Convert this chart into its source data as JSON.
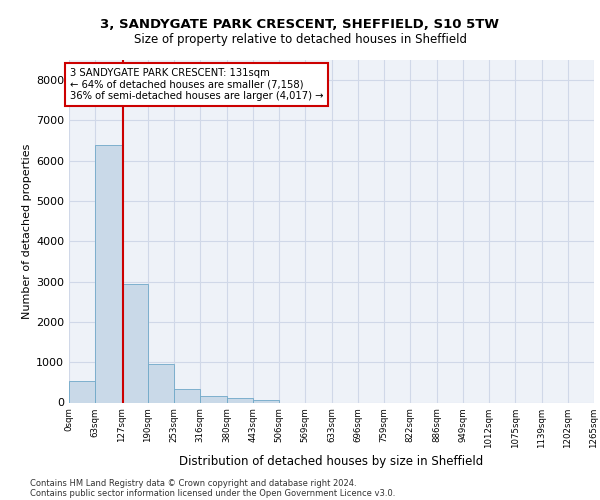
{
  "title_line1": "3, SANDYGATE PARK CRESCENT, SHEFFIELD, S10 5TW",
  "title_line2": "Size of property relative to detached houses in Sheffield",
  "xlabel": "Distribution of detached houses by size in Sheffield",
  "ylabel": "Number of detached properties",
  "footer1": "Contains HM Land Registry data © Crown copyright and database right 2024.",
  "footer2": "Contains public sector information licensed under the Open Government Licence v3.0.",
  "annotation_line1": "3 SANDYGATE PARK CRESCENT: 131sqm",
  "annotation_line2": "← 64% of detached houses are smaller (7,158)",
  "annotation_line3": "36% of semi-detached houses are larger (4,017) →",
  "property_size": 131,
  "bin_edges": [
    0,
    63,
    127,
    190,
    253,
    316,
    380,
    443,
    506,
    569,
    633,
    696,
    759,
    822,
    886,
    949,
    1012,
    1075,
    1139,
    1202,
    1265
  ],
  "bar_heights": [
    540,
    6390,
    2940,
    960,
    340,
    160,
    100,
    60,
    0,
    0,
    0,
    0,
    0,
    0,
    0,
    0,
    0,
    0,
    0,
    0
  ],
  "bar_color": "#c9d9e8",
  "bar_edge_color": "#6fa8c8",
  "red_line_color": "#cc0000",
  "grid_color": "#d0d8e8",
  "background_color": "#eef2f8",
  "ylim": [
    0,
    8500
  ],
  "yticks": [
    0,
    1000,
    2000,
    3000,
    4000,
    5000,
    6000,
    7000,
    8000
  ]
}
